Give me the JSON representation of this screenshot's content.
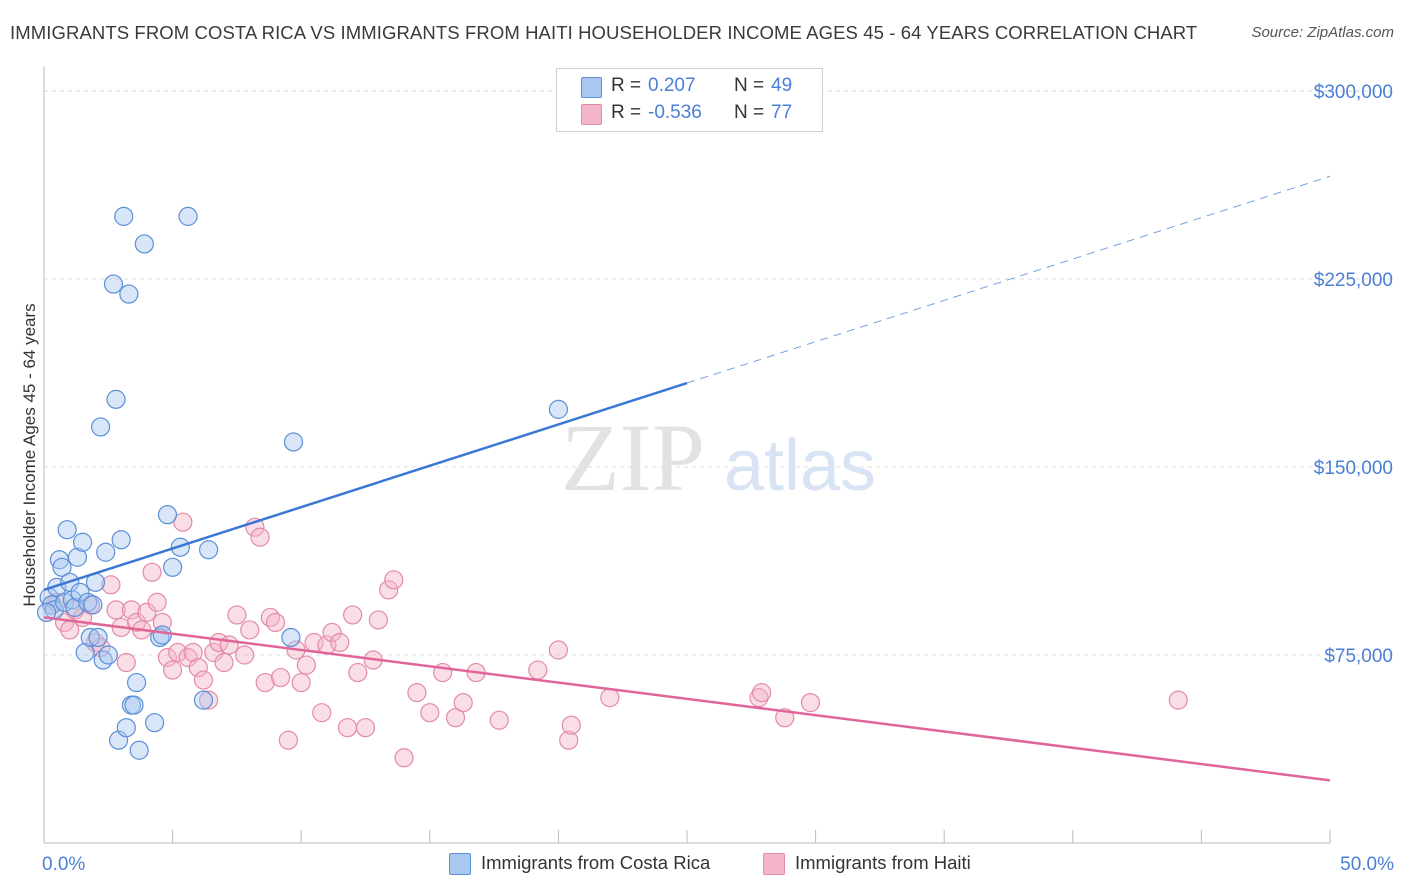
{
  "title": "IMMIGRANTS FROM COSTA RICA VS IMMIGRANTS FROM HAITI HOUSEHOLDER INCOME AGES 45 - 64 YEARS CORRELATION CHART",
  "source": "Source: ZipAtlas.com",
  "watermark": {
    "zip": "ZIP",
    "atlas": "atlas"
  },
  "legend": {
    "rows": [
      {
        "r_label": "R =",
        "r_value": "0.207",
        "n_label": "N =",
        "n_value": "49",
        "color": "#a8c8f0"
      },
      {
        "r_label": "R =",
        "r_value": "-0.536",
        "n_label": "N =",
        "n_value": "77",
        "color": "#f5b5c8"
      }
    ]
  },
  "bottom_legend": {
    "costa_rica": "Immigrants from Costa Rica",
    "haiti": "Immigrants from Haiti"
  },
  "chart_data": {
    "type": "scatter",
    "title": "IMMIGRANTS FROM COSTA RICA VS IMMIGRANTS FROM HAITI HOUSEHOLDER INCOME AGES 45 - 64 YEARS CORRELATION CHART",
    "xlabel": "",
    "ylabel": "Householder Income Ages 45 - 64 years",
    "xlim": [
      0,
      50
    ],
    "ylim": [
      0,
      310000
    ],
    "x_tick_labels": [
      "0.0%",
      "50.0%"
    ],
    "y_ticks": [
      75000,
      150000,
      225000,
      300000
    ],
    "y_tick_labels": [
      "$75,000",
      "$150,000",
      "$225,000",
      "$300,000"
    ],
    "grid": true,
    "colors": {
      "costa_rica_fill": "#a8c8f0",
      "costa_rica_stroke": "#5b8fd8",
      "costa_rica_line": "#3a78d4",
      "haiti_fill": "#f5b5c8",
      "haiti_stroke": "#e38aa8",
      "haiti_line": "#e0669a",
      "tick_label": "#4a7fd6"
    },
    "series": [
      {
        "name": "Immigrants from Costa Rica",
        "trend": {
          "x": [
            0,
            25,
            50
          ],
          "y": [
            101000,
            183500,
            266000
          ],
          "solid_until": 25
        },
        "points": [
          [
            0.2,
            98000
          ],
          [
            0.3,
            95000
          ],
          [
            0.4,
            93000
          ],
          [
            0.5,
            102000
          ],
          [
            0.6,
            113000
          ],
          [
            0.7,
            110000
          ],
          [
            0.8,
            96000
          ],
          [
            0.9,
            125000
          ],
          [
            1.0,
            104000
          ],
          [
            1.1,
            97000
          ],
          [
            1.2,
            94000
          ],
          [
            1.3,
            114000
          ],
          [
            1.4,
            100000
          ],
          [
            1.5,
            120000
          ],
          [
            1.6,
            76000
          ],
          [
            1.7,
            96000
          ],
          [
            1.8,
            82000
          ],
          [
            1.9,
            95000
          ],
          [
            2.0,
            104000
          ],
          [
            2.1,
            82000
          ],
          [
            2.2,
            166000
          ],
          [
            2.3,
            73000
          ],
          [
            2.4,
            116000
          ],
          [
            2.5,
            75000
          ],
          [
            2.7,
            223000
          ],
          [
            2.8,
            177000
          ],
          [
            2.9,
            41000
          ],
          [
            3.0,
            121000
          ],
          [
            3.1,
            250000
          ],
          [
            3.2,
            46000
          ],
          [
            3.3,
            219000
          ],
          [
            3.4,
            55000
          ],
          [
            3.5,
            55000
          ],
          [
            3.6,
            64000
          ],
          [
            3.7,
            37000
          ],
          [
            3.9,
            239000
          ],
          [
            4.3,
            48000
          ],
          [
            4.5,
            82000
          ],
          [
            4.6,
            83000
          ],
          [
            4.8,
            131000
          ],
          [
            5.0,
            110000
          ],
          [
            5.3,
            118000
          ],
          [
            5.6,
            250000
          ],
          [
            6.2,
            57000
          ],
          [
            6.4,
            117000
          ],
          [
            9.6,
            82000
          ],
          [
            9.7,
            160000
          ],
          [
            20.0,
            173000
          ],
          [
            0.1,
            92000
          ]
        ]
      },
      {
        "name": "Immigrants from Haiti",
        "trend": {
          "x": [
            0,
            50
          ],
          "y": [
            90000,
            25000
          ]
        },
        "points": [
          [
            0.3,
            95000
          ],
          [
            0.5,
            96000
          ],
          [
            0.8,
            88000
          ],
          [
            1.0,
            85000
          ],
          [
            1.2,
            93000
          ],
          [
            1.5,
            90000
          ],
          [
            1.8,
            95000
          ],
          [
            2.0,
            80000
          ],
          [
            2.2,
            78000
          ],
          [
            2.6,
            103000
          ],
          [
            2.8,
            93000
          ],
          [
            3.0,
            86000
          ],
          [
            3.2,
            72000
          ],
          [
            3.4,
            93000
          ],
          [
            3.6,
            88000
          ],
          [
            3.8,
            85000
          ],
          [
            4.0,
            92000
          ],
          [
            4.2,
            108000
          ],
          [
            4.4,
            96000
          ],
          [
            4.6,
            88000
          ],
          [
            4.8,
            74000
          ],
          [
            5.0,
            69000
          ],
          [
            5.2,
            76000
          ],
          [
            5.4,
            128000
          ],
          [
            5.6,
            74000
          ],
          [
            5.8,
            76000
          ],
          [
            6.0,
            70000
          ],
          [
            6.2,
            65000
          ],
          [
            6.4,
            57000
          ],
          [
            6.6,
            76000
          ],
          [
            6.8,
            80000
          ],
          [
            7.0,
            72000
          ],
          [
            7.2,
            79000
          ],
          [
            7.5,
            91000
          ],
          [
            7.8,
            75000
          ],
          [
            8.0,
            85000
          ],
          [
            8.2,
            126000
          ],
          [
            8.4,
            122000
          ],
          [
            8.6,
            64000
          ],
          [
            8.8,
            90000
          ],
          [
            9.0,
            88000
          ],
          [
            9.2,
            66000
          ],
          [
            9.5,
            41000
          ],
          [
            9.8,
            77000
          ],
          [
            10.0,
            64000
          ],
          [
            10.2,
            71000
          ],
          [
            10.5,
            80000
          ],
          [
            10.8,
            52000
          ],
          [
            11.0,
            79000
          ],
          [
            11.2,
            84000
          ],
          [
            11.5,
            80000
          ],
          [
            11.8,
            46000
          ],
          [
            12.0,
            91000
          ],
          [
            12.2,
            68000
          ],
          [
            12.5,
            46000
          ],
          [
            12.8,
            73000
          ],
          [
            13.0,
            89000
          ],
          [
            13.4,
            101000
          ],
          [
            13.6,
            105000
          ],
          [
            14.0,
            34000
          ],
          [
            14.5,
            60000
          ],
          [
            15.0,
            52000
          ],
          [
            15.5,
            68000
          ],
          [
            16.0,
            50000
          ],
          [
            16.3,
            56000
          ],
          [
            16.8,
            68000
          ],
          [
            17.7,
            49000
          ],
          [
            19.2,
            69000
          ],
          [
            20.0,
            77000
          ],
          [
            20.4,
            41000
          ],
          [
            20.5,
            47000
          ],
          [
            22.0,
            58000
          ],
          [
            27.8,
            58000
          ],
          [
            27.9,
            60000
          ],
          [
            28.8,
            50000
          ],
          [
            29.8,
            56000
          ],
          [
            44.1,
            57000
          ]
        ]
      }
    ]
  }
}
